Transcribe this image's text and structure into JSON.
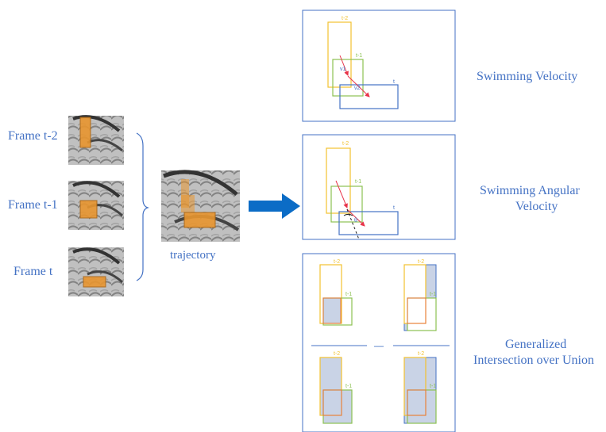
{
  "left_frames": [
    {
      "label": "Frame t-2"
    },
    {
      "label": "Frame t-1"
    },
    {
      "label": "Frame t"
    }
  ],
  "trajectory_label": "trajectory",
  "panels": {
    "velocity": {
      "title": "Swimming Velocity",
      "box_labels": {
        "t2": "t-2",
        "t1": "t-1",
        "t": "t"
      },
      "vector_labels": {
        "v1": "v1",
        "v2": "v2"
      }
    },
    "angular": {
      "title_lines": [
        "Swimming Angular",
        "Velocity"
      ],
      "box_labels": {
        "t2": "t-2",
        "t1": "t-1",
        "t": "t"
      },
      "angle_label": "θ"
    },
    "giou": {
      "title_lines": [
        "Generalized",
        "Intersection over Union"
      ],
      "box_labels": {
        "t2": "t-2",
        "t1": "t-1"
      },
      "operator": "—"
    }
  },
  "colors": {
    "text_blue": "#4472c4",
    "frame_line": "#4472c4",
    "box_t2": "#f2c230",
    "box_t1": "#8cc152",
    "box_t": "#4472c4",
    "fish_box_fill": "#e8952f",
    "intersection_fill": "#c9d3e6",
    "arrow": "#0b6cc6",
    "vector_red": "#e8344a",
    "orange_outline": "#e8763a"
  }
}
